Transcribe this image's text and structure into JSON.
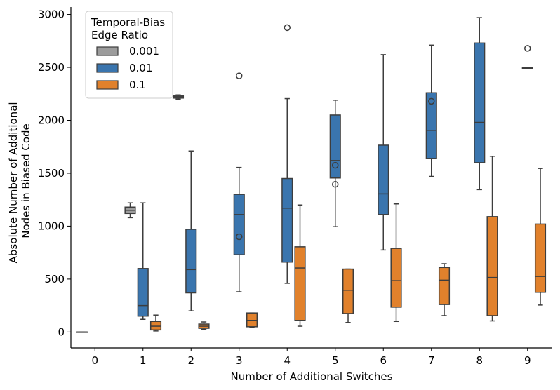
{
  "chart_data": {
    "type": "box",
    "xlabel": "Number of Additional Switches",
    "ylabel": [
      "Absolute Number of Additional",
      "Nodes in Biased Code"
    ],
    "categories": [
      "0",
      "1",
      "2",
      "3",
      "4",
      "5",
      "6",
      "7",
      "8",
      "9"
    ],
    "ylim": [
      -150,
      3070
    ],
    "yticks": [
      0,
      500,
      1000,
      1500,
      2000,
      2500,
      3000
    ],
    "legend": {
      "title": [
        "Temporal-Bias",
        "Edge Ratio"
      ],
      "position": "top-left",
      "entries": [
        "0.001",
        "0.01",
        "0.1"
      ]
    },
    "series": [
      {
        "name": "0.001",
        "color": "#9c9c9c",
        "boxes": [
          {
            "x": 0,
            "whislo": 0,
            "q1": 0,
            "med": 0,
            "q3": 0,
            "whishi": 0,
            "fliers": []
          },
          {
            "x": 1,
            "whislo": 1080,
            "q1": 1120,
            "med": 1150,
            "q3": 1180,
            "whishi": 1220,
            "fliers": []
          },
          {
            "x": 2,
            "whislo": 2200,
            "q1": 2210,
            "med": 2220,
            "q3": 2230,
            "whishi": 2240,
            "fliers": []
          }
        ]
      },
      {
        "name": "0.01",
        "color": "#3a75ae",
        "boxes": [
          {
            "x": 1,
            "whislo": 120,
            "q1": 150,
            "med": 250,
            "q3": 600,
            "whishi": 1220,
            "fliers": []
          },
          {
            "x": 2,
            "whislo": 200,
            "q1": 370,
            "med": 590,
            "q3": 970,
            "whishi": 1710,
            "fliers": []
          },
          {
            "x": 3,
            "whislo": 380,
            "q1": 730,
            "med": 1110,
            "q3": 1300,
            "whishi": 1555,
            "fliers": [
              900,
              2420
            ]
          },
          {
            "x": 4,
            "whislo": 460,
            "q1": 660,
            "med": 1170,
            "q3": 1450,
            "whishi": 2205,
            "fliers": [
              2875
            ]
          },
          {
            "x": 5,
            "whislo": 995,
            "q1": 1455,
            "med": 1620,
            "q3": 2050,
            "whishi": 2190,
            "fliers": [
              1395,
              1575
            ]
          },
          {
            "x": 6,
            "whislo": 775,
            "q1": 1110,
            "med": 1305,
            "q3": 1765,
            "whishi": 2620,
            "fliers": []
          },
          {
            "x": 7,
            "whislo": 1470,
            "q1": 1640,
            "med": 1905,
            "q3": 2260,
            "whishi": 2710,
            "fliers": [
              2180
            ]
          },
          {
            "x": 8,
            "whislo": 1345,
            "q1": 1600,
            "med": 1980,
            "q3": 2730,
            "whishi": 2970,
            "fliers": []
          },
          {
            "x": 9,
            "whislo": 2495,
            "q1": 2495,
            "med": 2495,
            "q3": 2495,
            "whishi": 2495,
            "fliers": [
              2680
            ]
          }
        ]
      },
      {
        "name": "0.1",
        "color": "#e1812c",
        "boxes": [
          {
            "x": 1,
            "whislo": 10,
            "q1": 20,
            "med": 55,
            "q3": 100,
            "whishi": 160,
            "fliers": []
          },
          {
            "x": 2,
            "whislo": 25,
            "q1": 35,
            "med": 55,
            "q3": 75,
            "whishi": 95,
            "fliers": []
          },
          {
            "x": 3,
            "whislo": 45,
            "q1": 50,
            "med": 110,
            "q3": 180,
            "whishi": 180,
            "fliers": []
          },
          {
            "x": 4,
            "whislo": 55,
            "q1": 110,
            "med": 605,
            "q3": 805,
            "whishi": 1200,
            "fliers": []
          },
          {
            "x": 5,
            "whislo": 90,
            "q1": 175,
            "med": 395,
            "q3": 595,
            "whishi": 595,
            "fliers": []
          },
          {
            "x": 6,
            "whislo": 100,
            "q1": 235,
            "med": 485,
            "q3": 790,
            "whishi": 1210,
            "fliers": []
          },
          {
            "x": 7,
            "whislo": 155,
            "q1": 260,
            "med": 490,
            "q3": 610,
            "whishi": 645,
            "fliers": []
          },
          {
            "x": 8,
            "whislo": 105,
            "q1": 155,
            "med": 515,
            "q3": 1090,
            "whishi": 1660,
            "fliers": []
          },
          {
            "x": 9,
            "whislo": 255,
            "q1": 375,
            "med": 525,
            "q3": 1020,
            "whishi": 1545,
            "fliers": []
          }
        ]
      }
    ]
  }
}
